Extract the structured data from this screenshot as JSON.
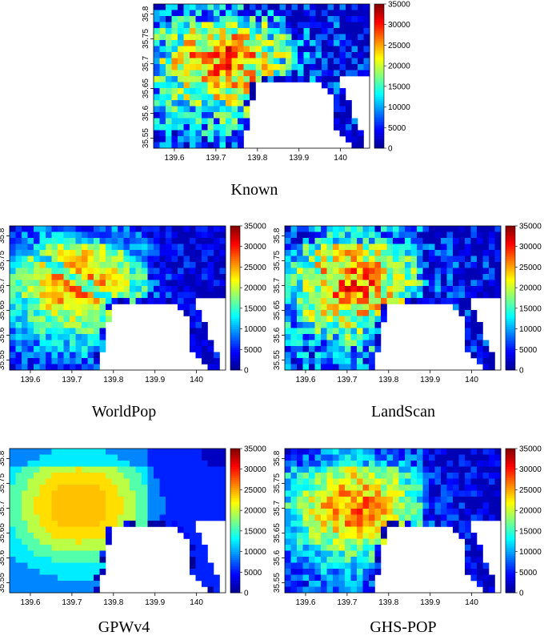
{
  "chart_data": [
    {
      "type": "heatmap",
      "title": "Known",
      "x_ticks": [
        "139.6",
        "139.7",
        "139.8",
        "139.9",
        "140"
      ],
      "y_ticks": [
        "35.55",
        "35.6",
        "35.65",
        "35.7",
        "35.75",
        "35.8"
      ],
      "colorbar_ticks": [
        "0",
        "5000",
        "10000",
        "15000",
        "20000",
        "25000",
        "30000",
        "35000"
      ],
      "xlim": [
        139.55,
        140.07
      ],
      "ylim": [
        35.53,
        35.82
      ],
      "value_range": [
        0,
        35000
      ],
      "colormap": [
        "#00008f",
        "#0000ff",
        "#0080ff",
        "#00ffff",
        "#80ff80",
        "#ffff00",
        "#ff8000",
        "#ff0000",
        "#800000"
      ]
    },
    {
      "type": "heatmap",
      "title": "WorldPop",
      "x_ticks": [
        "139.6",
        "139.7",
        "139.8",
        "139.9",
        "140"
      ],
      "y_ticks": [
        "35.55",
        "35.6",
        "35.65",
        "35.7",
        "35.75",
        "35.8"
      ],
      "colorbar_ticks": [
        "0",
        "5000",
        "10000",
        "15000",
        "20000",
        "25000",
        "30000",
        "35000"
      ],
      "xlim": [
        139.55,
        140.07
      ],
      "ylim": [
        35.53,
        35.82
      ],
      "value_range": [
        0,
        35000
      ]
    },
    {
      "type": "heatmap",
      "title": "LandScan",
      "x_ticks": [
        "139.6",
        "139.7",
        "139.8",
        "139.9",
        "140"
      ],
      "y_ticks": [
        "35.55",
        "35.6",
        "35.65",
        "35.7",
        "35.75",
        "35.8"
      ],
      "colorbar_ticks": [
        "0",
        "5000",
        "10000",
        "15000",
        "20000",
        "25000",
        "30000",
        "35000"
      ],
      "xlim": [
        139.55,
        140.07
      ],
      "ylim": [
        35.53,
        35.82
      ],
      "value_range": [
        0,
        35000
      ]
    },
    {
      "type": "heatmap",
      "title": "GPWv4",
      "x_ticks": [
        "139.6",
        "139.7",
        "139.8",
        "139.9",
        "140"
      ],
      "y_ticks": [
        "35.55",
        "35.6",
        "35.65",
        "35.7",
        "35.75",
        "35.8"
      ],
      "colorbar_ticks": [
        "0",
        "5000",
        "10000",
        "15000",
        "20000",
        "25000",
        "30000",
        "35000"
      ],
      "xlim": [
        139.55,
        140.07
      ],
      "ylim": [
        35.53,
        35.82
      ],
      "value_range": [
        0,
        35000
      ]
    },
    {
      "type": "heatmap",
      "title": "GHS-POP",
      "x_ticks": [
        "139.6",
        "139.7",
        "139.8",
        "139.9",
        "140"
      ],
      "y_ticks": [
        "35.55",
        "35.6",
        "35.65",
        "35.7",
        "35.75",
        "35.8"
      ],
      "colorbar_ticks": [
        "0",
        "5000",
        "10000",
        "15000",
        "20000",
        "25000",
        "30000",
        "35000"
      ],
      "xlim": [
        139.55,
        140.07
      ],
      "ylim": [
        35.53,
        35.82
      ],
      "value_range": [
        0,
        35000
      ]
    }
  ]
}
